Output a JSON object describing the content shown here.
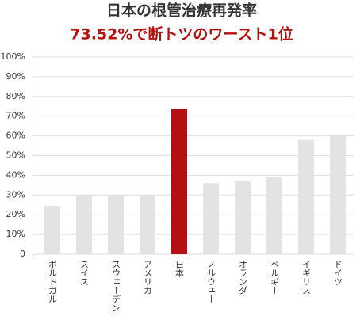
{
  "chart_data": {
    "type": "bar",
    "title": "日本の根管治療再発率",
    "subtitle": "73.52%で断トツのワースト1位",
    "categories": [
      "ポルトガル",
      "スイス",
      "スウェーデン",
      "アメリカ",
      "日本",
      "ノルウェー",
      "オランダ",
      "ベルギー",
      "イギリス",
      "ドイツ"
    ],
    "values": [
      24.5,
      30,
      30,
      30,
      73.52,
      36,
      37,
      39,
      58,
      60
    ],
    "colors": [
      "#e3e3e3",
      "#e3e3e3",
      "#e3e3e3",
      "#e3e3e3",
      "#b50f0f",
      "#e3e3e3",
      "#e3e3e3",
      "#e3e3e3",
      "#e3e3e3",
      "#e3e3e3"
    ],
    "ylim": [
      0,
      100
    ],
    "yticks": [
      0,
      {
        "value": 10,
        "label": "10%"
      },
      {
        "value": 20,
        "label": "20%"
      },
      {
        "value": 30,
        "label": "30%"
      },
      {
        "value": 40,
        "label": "40%"
      },
      {
        "value": 50,
        "label": "50%"
      },
      {
        "value": 60,
        "label": "60%"
      },
      {
        "value": 70,
        "label": "70%"
      },
      {
        "value": 80,
        "label": "80%"
      },
      {
        "value": 90,
        "label": "90%"
      },
      {
        "value": 100,
        "label": "100%"
      }
    ],
    "grid": true
  }
}
